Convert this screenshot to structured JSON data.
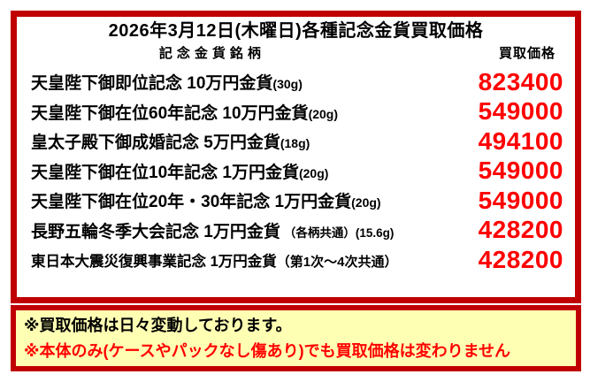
{
  "page": {
    "title": "2026年3月12日(木曜日)各種記念金貨買取価格"
  },
  "table": {
    "name_header": "記念金貨銘柄",
    "price_header": "買取価格",
    "rows": [
      {
        "name": "天皇陛下御即位記念 10万円金貨",
        "detail": "(30g)",
        "price": "823400"
      },
      {
        "name": "天皇陛下御在位60年記念 10万円金貨",
        "detail": "(20g)",
        "price": "549000"
      },
      {
        "name": "皇太子殿下御成婚記念 5万円金貨",
        "detail": "(18g)",
        "price": "494100"
      },
      {
        "name": "天皇陛下御在位10年記念 1万円金貨",
        "detail": "(20g)",
        "price": "549000"
      },
      {
        "name": "天皇陛下御在位20年・30年記念 1万円金貨",
        "detail": "(20g)",
        "price": "549000"
      },
      {
        "name": "長野五輪冬季大会記念 1万円金貨",
        "detail": "（各柄共通）(15.6g)",
        "price": "428200"
      },
      {
        "name": "東日本大震災復興事業記念 1万円金貨",
        "detail": "（第1次～4次共通）",
        "price": "428200"
      }
    ]
  },
  "notes": [
    {
      "text": "※買取価格は日々変動しております。",
      "color": "#000000"
    },
    {
      "text": "※本体のみ(ケースやパックなし傷あり)でも買取価格は変わりません",
      "color": "#FF0000"
    }
  ],
  "colors": {
    "border_red": "#C00000",
    "price_red": "#FF0000",
    "note_background": "#FFFFB3"
  }
}
